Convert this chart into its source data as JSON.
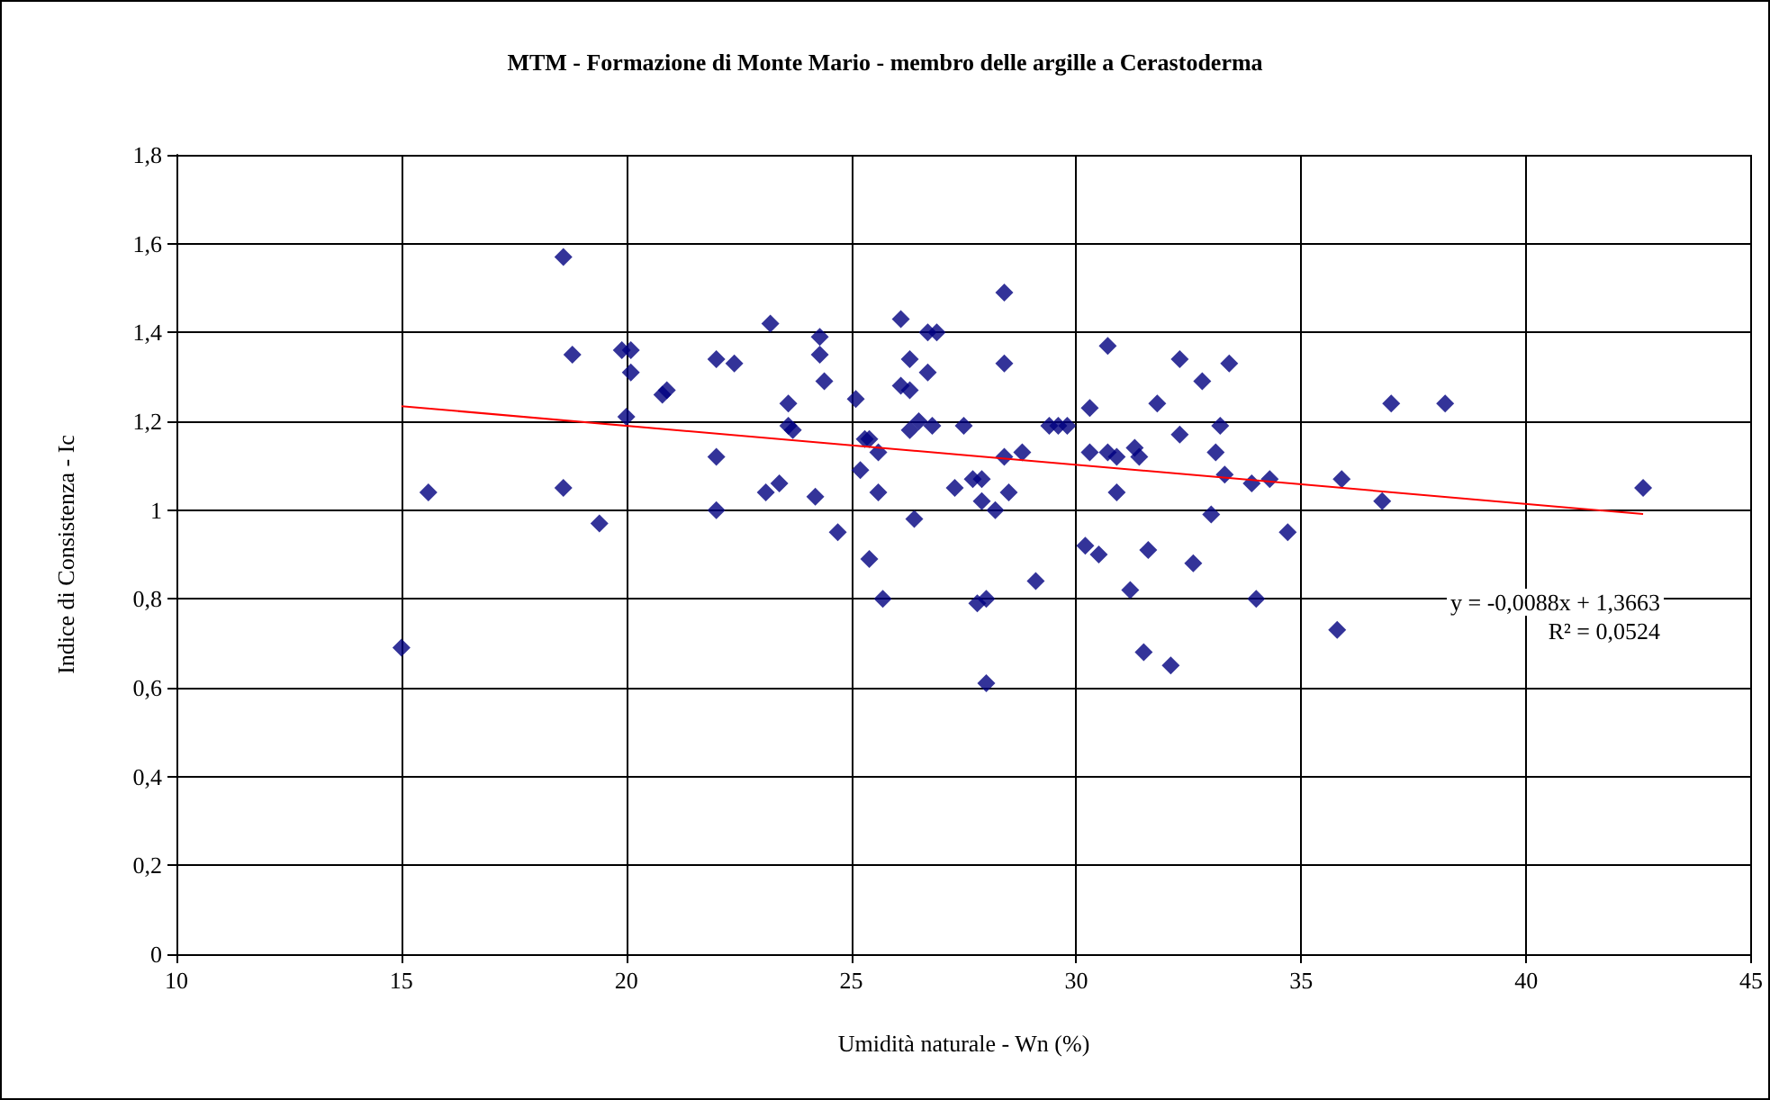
{
  "chart_data": {
    "type": "scatter",
    "title": "MTM - Formazione di Monte Mario - membro delle argille a Cerastoderma",
    "xlabel": "Umidità naturale - Wn (%)",
    "ylabel": "Indice di Consistenza - Ic",
    "xlim": [
      10,
      45
    ],
    "xticks": [
      10,
      15,
      20,
      25,
      30,
      35,
      40,
      45
    ],
    "ylim": [
      0,
      1.8
    ],
    "yticks": [
      0,
      {
        "value": 0.2,
        "label": "0,2"
      },
      {
        "value": 0.4,
        "label": "0,4"
      },
      {
        "value": 0.6,
        "label": "0,6"
      },
      {
        "value": 0.8,
        "label": "0,8"
      },
      1,
      {
        "value": 1.2,
        "label": "1,2"
      },
      {
        "value": 1.4,
        "label": "1,4"
      },
      {
        "value": 1.6,
        "label": "1,6"
      },
      {
        "value": 1.8,
        "label": "1,8"
      }
    ],
    "grid": true,
    "marker": "diamond",
    "series": [
      {
        "color": "#000080",
        "x": [
          15,
          15.6,
          18.6,
          18.6,
          18.8,
          19.4,
          19.9,
          20.1,
          20.0,
          20.1,
          20.8,
          20.9,
          22,
          22,
          22,
          22.4,
          23.1,
          23.2,
          23.4,
          23.6,
          23.6,
          23.7,
          24.2,
          24.3,
          24.3,
          24.4,
          24.7,
          25.1,
          25.2,
          25.3,
          25.4,
          25.4,
          25.6,
          25.6,
          25.7,
          26.1,
          26.1,
          26.3,
          26.3,
          26.3,
          26.4,
          26.5,
          26.7,
          26.7,
          26.8,
          26.9,
          27.3,
          27.5,
          27.7,
          27.8,
          27.9,
          27.9,
          28.0,
          28.0,
          28.2,
          28.4,
          28.4,
          28.4,
          28.5,
          28.8,
          29.1,
          29.4,
          29.6,
          29.8,
          30.2,
          30.3,
          30.3,
          30.5,
          30.7,
          30.7,
          30.9,
          30.9,
          31.2,
          31.3,
          31.4,
          31.5,
          31.6,
          31.8,
          32.1,
          32.3,
          32.3,
          32.6,
          32.8,
          33.0,
          33.1,
          33.2,
          33.3,
          33.4,
          33.9,
          34.0,
          34.3,
          34.7,
          35.8,
          35.9,
          36.8,
          37.0,
          38.2,
          42.6
        ],
        "values": [
          0.69,
          1.04,
          1.57,
          1.05,
          1.35,
          0.97,
          1.36,
          1.36,
          1.21,
          1.31,
          1.26,
          1.27,
          1.34,
          1.12,
          1.0,
          1.33,
          1.04,
          1.42,
          1.06,
          1.19,
          1.24,
          1.18,
          1.03,
          1.39,
          1.35,
          1.29,
          0.95,
          1.25,
          1.09,
          1.16,
          0.89,
          1.16,
          1.13,
          1.04,
          0.8,
          1.43,
          1.28,
          1.34,
          1.18,
          1.27,
          0.98,
          1.2,
          1.31,
          1.4,
          1.19,
          1.4,
          1.05,
          1.19,
          1.07,
          0.79,
          1.02,
          1.07,
          0.8,
          0.61,
          1.0,
          1.49,
          1.33,
          1.12,
          1.04,
          1.13,
          0.84,
          1.19,
          1.19,
          1.19,
          0.92,
          1.23,
          1.13,
          0.9,
          1.37,
          1.13,
          1.12,
          1.04,
          0.82,
          1.14,
          1.12,
          0.68,
          0.91,
          1.24,
          0.65,
          1.34,
          1.17,
          0.88,
          1.29,
          0.99,
          1.13,
          1.19,
          1.08,
          1.33,
          1.06,
          0.8,
          1.07,
          0.95,
          0.73,
          1.07,
          1.02,
          1.24,
          1.24,
          1.05
        ]
      },
      {
        "type": "line",
        "color": "#ff0000",
        "marker": "none",
        "x": [
          15,
          42.6
        ],
        "values": [
          1.234,
          0.991
        ]
      }
    ],
    "annotations": [
      "y = -0,0088x + 1,3663",
      "R² = 0,0524"
    ]
  }
}
